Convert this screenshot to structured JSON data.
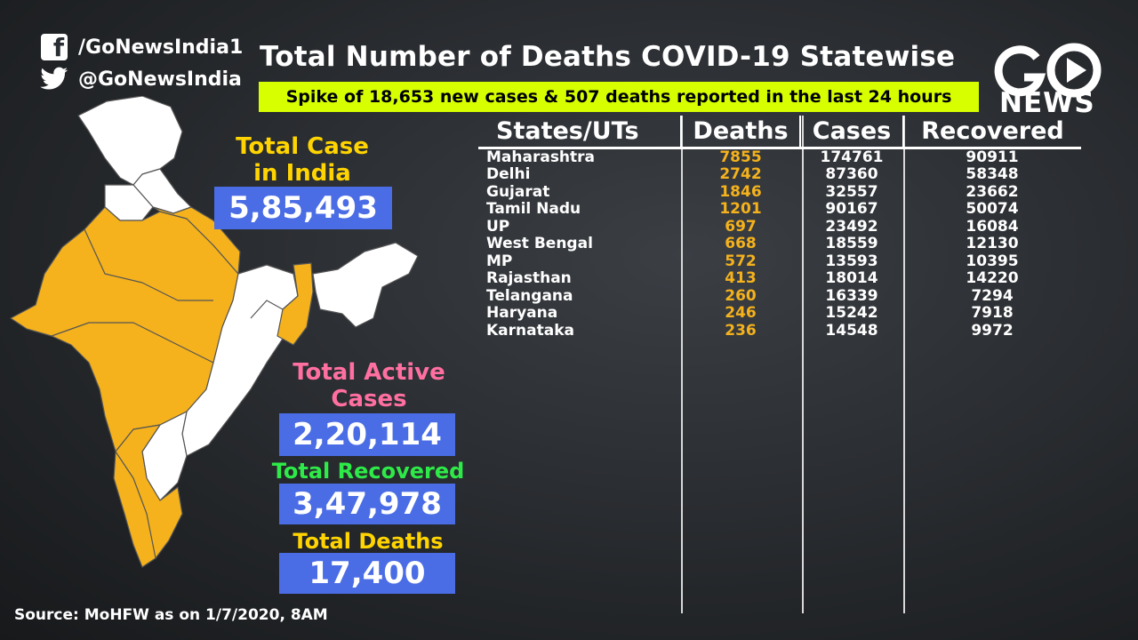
{
  "social": {
    "facebook": "/GoNewsIndia1",
    "twitter": "@GoNewsIndia"
  },
  "title": "Total Number of Deaths COVID-19 Statewise",
  "spike": "Spike of 18,653 new cases & 507 deaths reported in the last 24 hours",
  "logo": {
    "text": "NEWS",
    "letters": "G",
    "play_icon": "play-icon"
  },
  "stats": {
    "total_case_label": "Total Case in India",
    "total_case_value": "5,85,493",
    "active_label": "Total Active Cases",
    "active_value": "2,20,114",
    "recovered_label": "Total Recovered",
    "recovered_value": "3,47,978",
    "deaths_label": "Total Deaths",
    "deaths_value": "17,400"
  },
  "table": {
    "headers": [
      "States/UTs",
      "Deaths",
      "Cases",
      "Recovered"
    ],
    "rows": [
      [
        "Maharashtra",
        "7855",
        "174761",
        "90911"
      ],
      [
        "Delhi",
        "2742",
        "87360",
        "58348"
      ],
      [
        "Gujarat",
        "1846",
        "32557",
        "23662"
      ],
      [
        "Tamil Nadu",
        "1201",
        "90167",
        "50074"
      ],
      [
        "UP",
        "697",
        "23492",
        "16084"
      ],
      [
        "West Bengal",
        "668",
        "18559",
        "12130"
      ],
      [
        "MP",
        "572",
        "13593",
        "10395"
      ],
      [
        "Rajasthan",
        "413",
        "18014",
        "14220"
      ],
      [
        "Telangana",
        "260",
        "16339",
        "7294"
      ],
      [
        "Haryana",
        "246",
        "15242",
        "7918"
      ],
      [
        "Karnataka",
        "236",
        "14548",
        "9972"
      ]
    ]
  },
  "source": "Source: MoHFW as on 1/7/2020, 8AM",
  "colors": {
    "highlight_yellow": "#d7ff00",
    "stat_box_blue": "#4a6de5",
    "map_orange": "#f5b21c",
    "active_pink": "#ff6fa0",
    "recovered_green": "#2eea48"
  }
}
